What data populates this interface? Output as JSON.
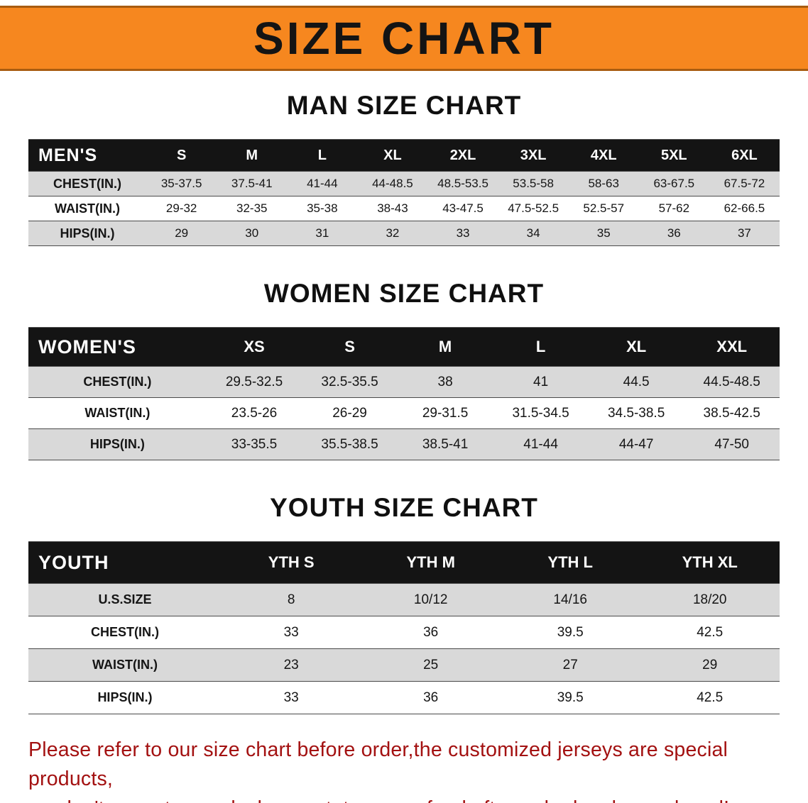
{
  "banner": {
    "title": "SIZE CHART",
    "bg_color": "#f6871f"
  },
  "sections": [
    {
      "key": "men",
      "heading": "MAN SIZE CHART",
      "table": {
        "header": [
          "MEN'S",
          "S",
          "M",
          "L",
          "XL",
          "2XL",
          "3XL",
          "4XL",
          "5XL",
          "6XL"
        ],
        "rows": [
          [
            "CHEST(IN.)",
            "35-37.5",
            "37.5-41",
            "41-44",
            "44-48.5",
            "48.5-53.5",
            "53.5-58",
            "58-63",
            "63-67.5",
            "67.5-72"
          ],
          [
            "WAIST(IN.)",
            "29-32",
            "32-35",
            "35-38",
            "38-43",
            "43-47.5",
            "47.5-52.5",
            "52.5-57",
            "57-62",
            "62-66.5"
          ],
          [
            "HIPS(IN.)",
            "29",
            "30",
            "31",
            "32",
            "33",
            "34",
            "35",
            "36",
            "37"
          ]
        ]
      }
    },
    {
      "key": "women",
      "heading": "WOMEN SIZE CHART",
      "table": {
        "header": [
          "WOMEN'S",
          "XS",
          "S",
          "M",
          "L",
          "XL",
          "XXL"
        ],
        "rows": [
          [
            "CHEST(IN.)",
            "29.5-32.5",
            "32.5-35.5",
            "38",
            "41",
            "44.5",
            "44.5-48.5"
          ],
          [
            "WAIST(IN.)",
            "23.5-26",
            "26-29",
            "29-31.5",
            "31.5-34.5",
            "34.5-38.5",
            "38.5-42.5"
          ],
          [
            "HIPS(IN.)",
            "33-35.5",
            "35.5-38.5",
            "38.5-41",
            "41-44",
            "44-47",
            "47-50"
          ]
        ]
      }
    },
    {
      "key": "youth",
      "heading": "YOUTH SIZE CHART",
      "table": {
        "header": [
          "YOUTH",
          "YTH S",
          "YTH M",
          "YTH L",
          "YTH XL"
        ],
        "rows": [
          [
            "U.S.SIZE",
            "8",
            "10/12",
            "14/16",
            "18/20"
          ],
          [
            "CHEST(IN.)",
            "33",
            "36",
            "39.5",
            "42.5"
          ],
          [
            "WAIST(IN.)",
            "23",
            "25",
            "27",
            "29"
          ],
          [
            "HIPS(IN.)",
            "33",
            "36",
            "39.5",
            "42.5"
          ]
        ]
      }
    }
  ],
  "disclaimer": {
    "line1": "Please refer to our size chart before order,the customized jerseys are special products,",
    "line2": "we don't accept cancel, change, teturn or refund after order has been placed!"
  }
}
